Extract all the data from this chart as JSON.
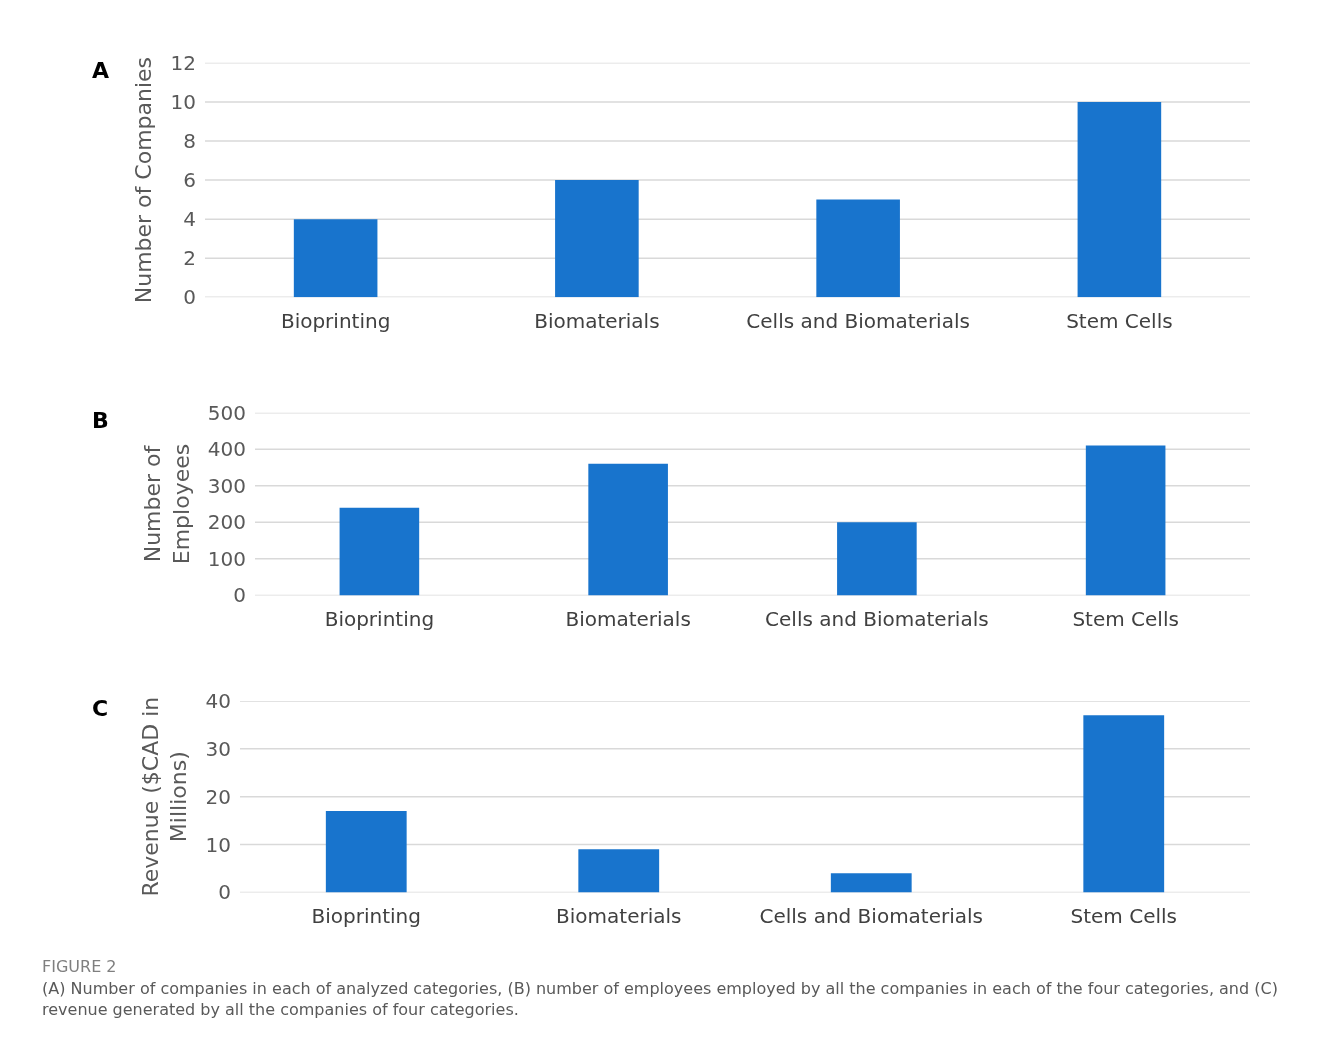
{
  "chart_data": [
    {
      "type": "bar",
      "title": "A",
      "ylabel": "Number of Companies",
      "categories": [
        "Bioprinting",
        "Biomaterials",
        "Cells and Biomaterials",
        "Stem Cells"
      ],
      "values": [
        4,
        6,
        5,
        10
      ],
      "color": "#1874cd",
      "ylim": [
        0,
        12
      ],
      "yticks": [
        0,
        2,
        4,
        6,
        8,
        10,
        12
      ],
      "grid": "y"
    },
    {
      "type": "bar",
      "title": "B",
      "ylabel": "Number of Employees",
      "categories": [
        "Bioprinting",
        "Biomaterials",
        "Cells and Biomaterials",
        "Stem Cells"
      ],
      "values": [
        240,
        360,
        200,
        410
      ],
      "color": "#1874cd",
      "ylim": [
        0,
        500
      ],
      "yticks": [
        0,
        100,
        200,
        300,
        400,
        500
      ],
      "grid": "y"
    },
    {
      "type": "bar",
      "title": "C",
      "ylabel": "Revenue ($CAD in Millions)",
      "categories": [
        "Bioprinting",
        "Biomaterials",
        "Cells and Biomaterials",
        "Stem Cells"
      ],
      "values": [
        17,
        9,
        4,
        37
      ],
      "color": "#1874cd",
      "ylim": [
        0,
        40
      ],
      "yticks": [
        0,
        10,
        20,
        30,
        40
      ],
      "grid": "y",
      "annotations": [
        "FIGURE 2",
        "(A) Number of companies in each of analyzed categories, (B) number of employees employed by all the companies in each of the four categories, and (C) revenue generated by all the companies of four categories."
      ]
    }
  ]
}
